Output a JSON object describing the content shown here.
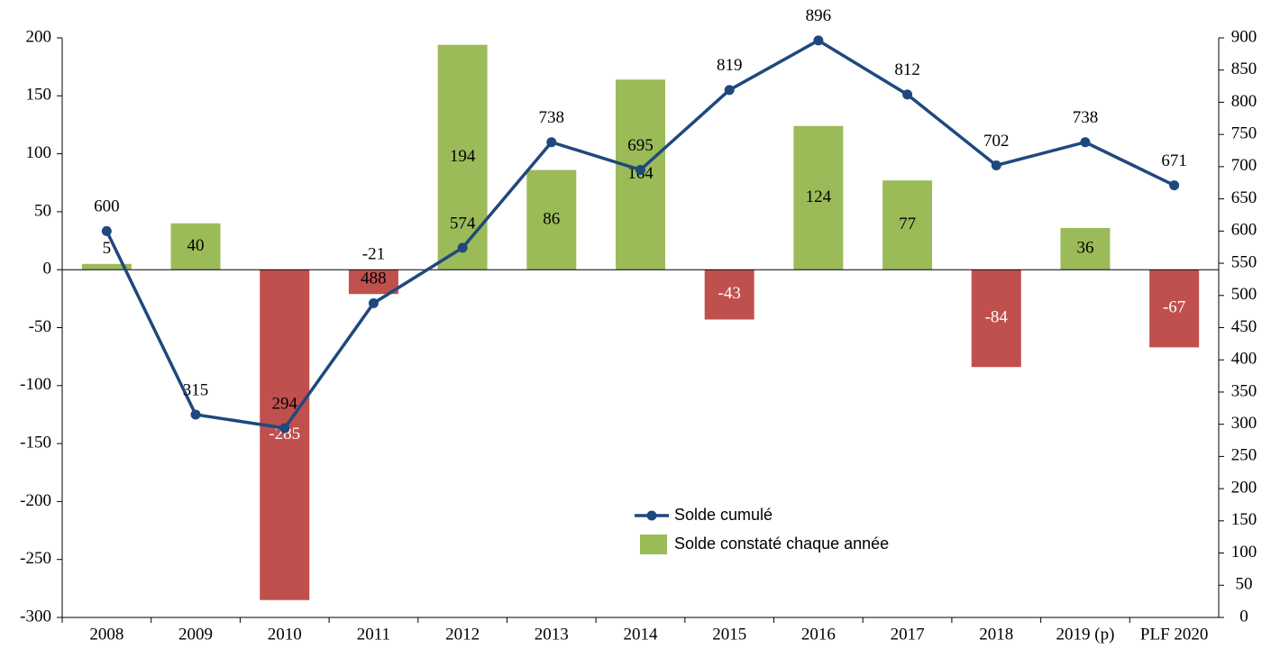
{
  "chart_data": {
    "type": "bar",
    "categories": [
      "2008",
      "2009",
      "2010",
      "2011",
      "2012",
      "2013",
      "2014",
      "2015",
      "2016",
      "2017",
      "2018",
      "2019 (p)",
      "PLF 2020"
    ],
    "series": [
      {
        "name": "Solde constaté chaque année",
        "type": "bar",
        "color": "#9bbb59",
        "negative_color": "#c0504d",
        "values": [
          5,
          40,
          -285,
          -21,
          194,
          86,
          164,
          -43,
          124,
          77,
          -84,
          36,
          -67
        ]
      },
      {
        "name": "Solde cumulé",
        "type": "line",
        "axis": "y2",
        "color": "#1f497d",
        "values": [
          600,
          315,
          294,
          488,
          574,
          738,
          695,
          819,
          896,
          812,
          702,
          738,
          671
        ]
      }
    ],
    "ylim": [
      -300,
      200
    ],
    "yticks": [
      -300,
      -250,
      -200,
      -150,
      -100,
      -50,
      0,
      50,
      100,
      150,
      200
    ],
    "y2lim": [
      0,
      900
    ],
    "y2ticks": [
      0,
      50,
      100,
      150,
      200,
      250,
      300,
      350,
      400,
      450,
      500,
      550,
      600,
      650,
      700,
      750,
      800,
      850,
      900
    ]
  }
}
